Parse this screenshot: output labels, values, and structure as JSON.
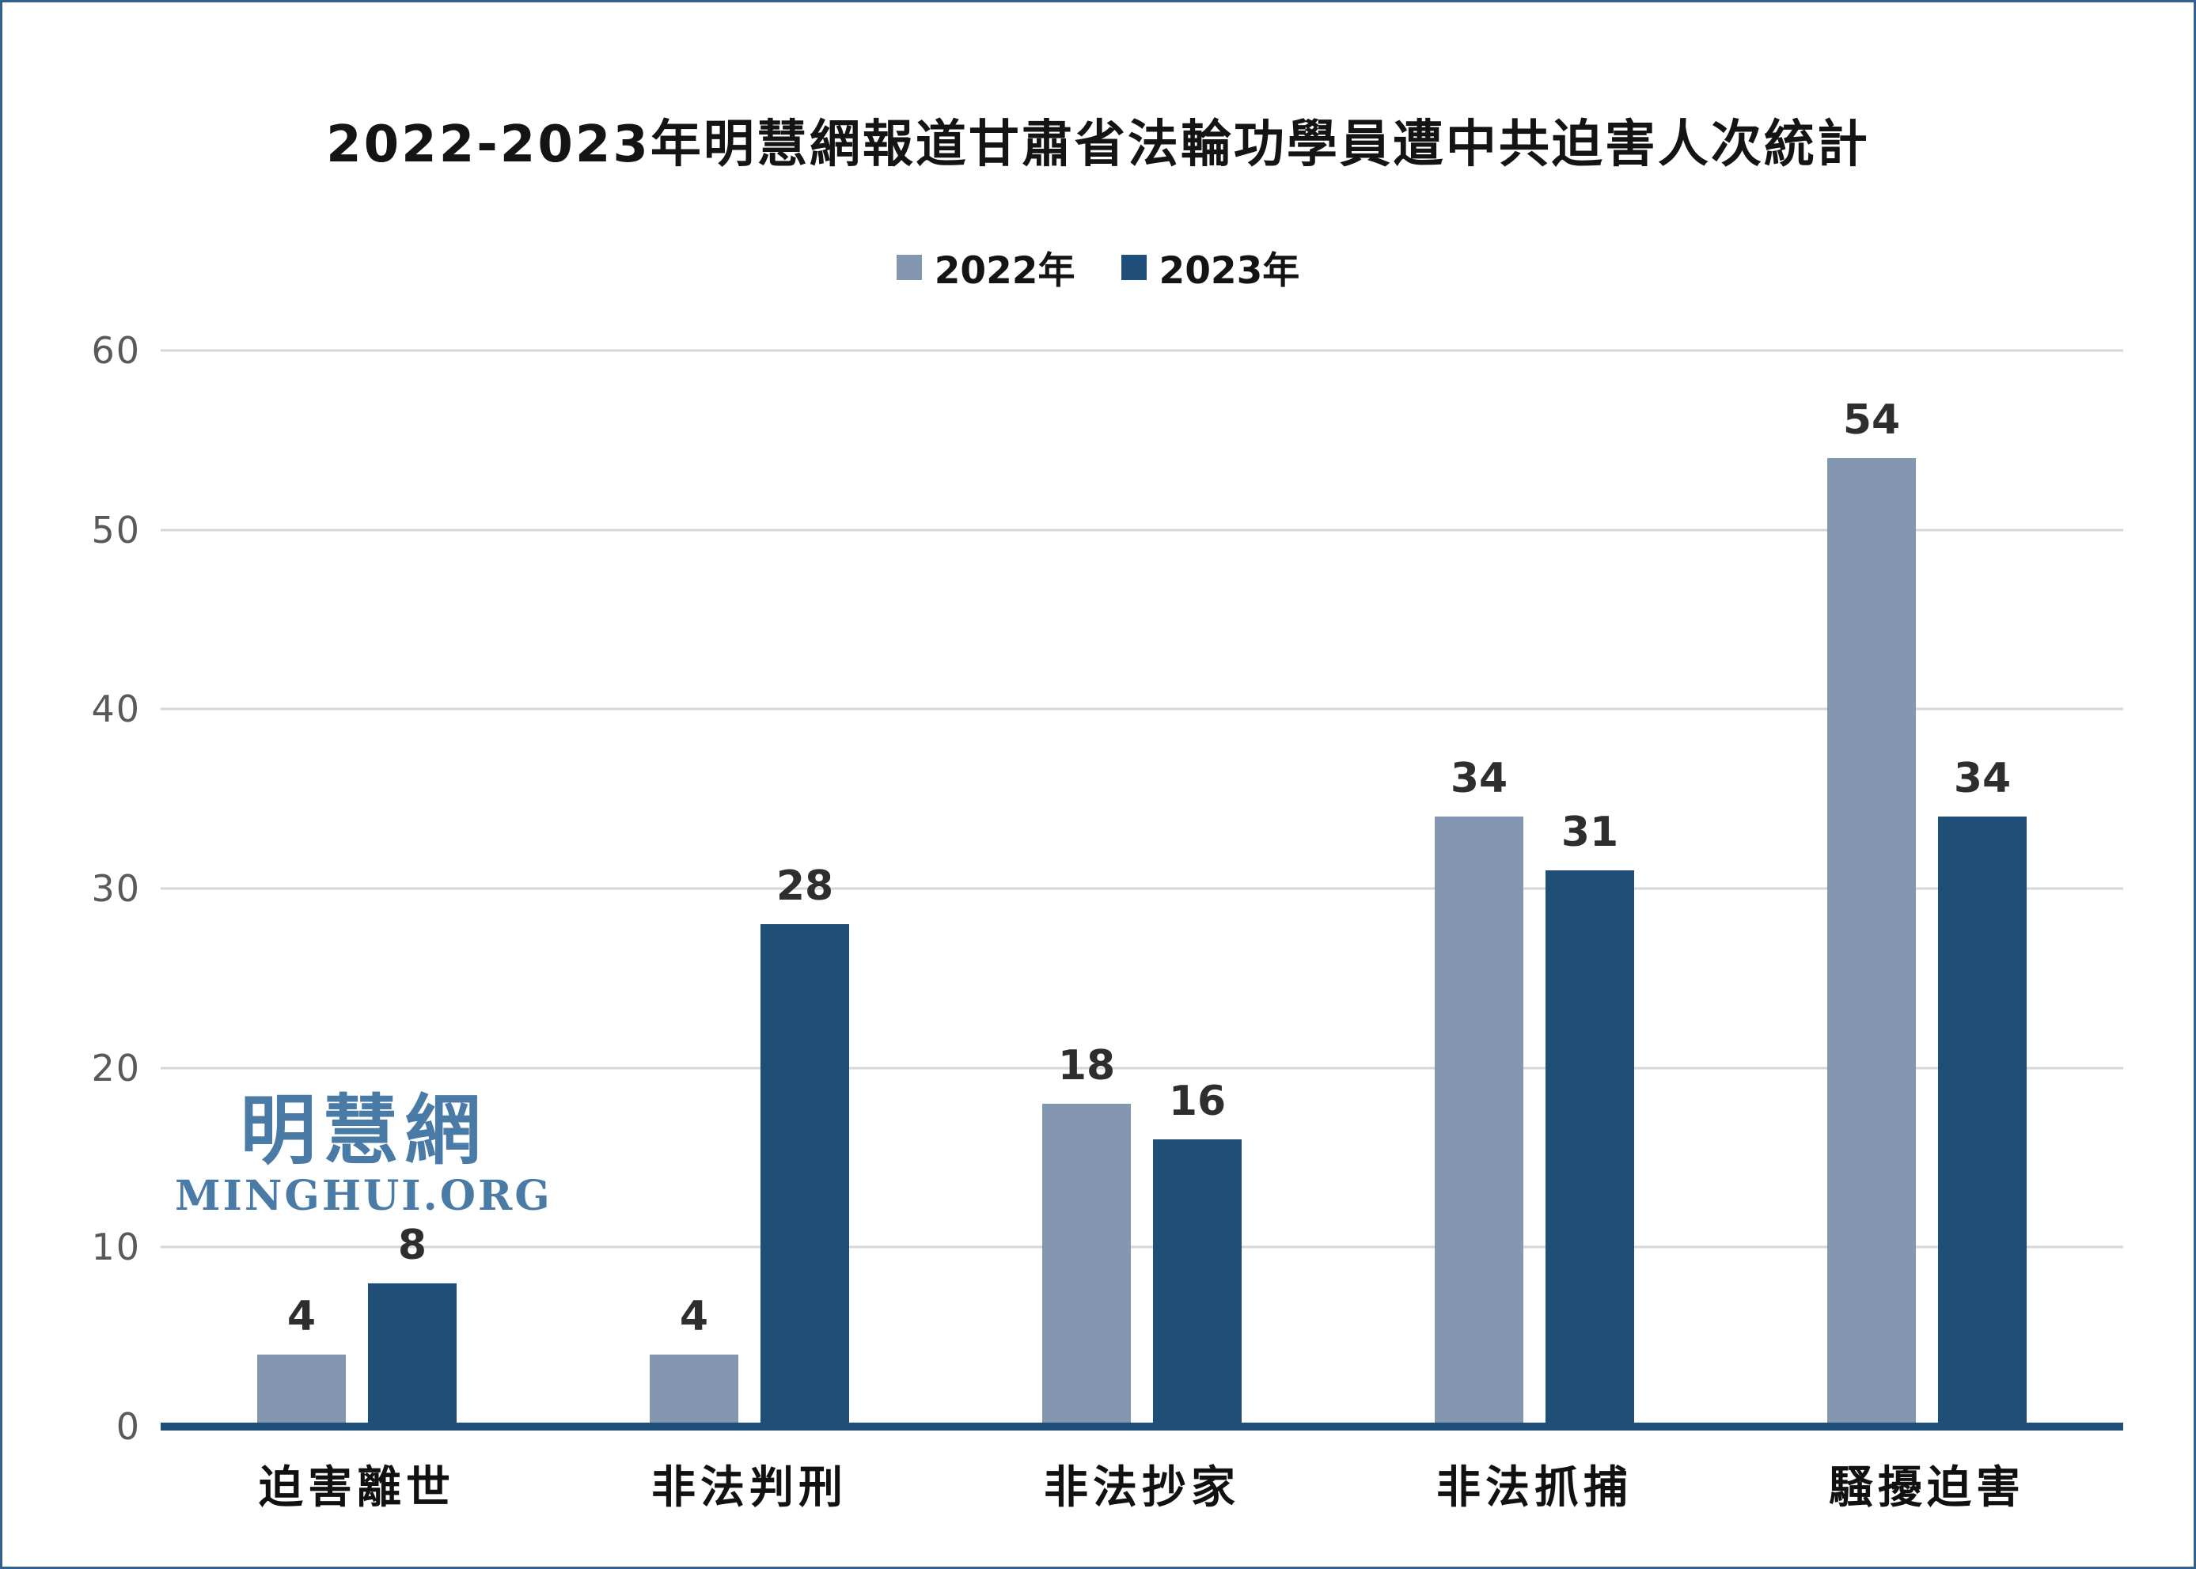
{
  "page": {
    "background": "#ffffff",
    "border_color": "#33618e"
  },
  "chart_data": {
    "type": "bar",
    "title": "2022-2023年明慧網報道甘肅省法輪功學員遭中共迫害人次統計",
    "categories": [
      "迫害離世",
      "非法判刑",
      "非法抄家",
      "非法抓捕",
      "騷擾迫害"
    ],
    "series": [
      {
        "name": "2022年",
        "color": "#8397B2",
        "values": [
          4,
          4,
          18,
          34,
          54
        ]
      },
      {
        "name": "2023年",
        "color": "#1F4E79",
        "values": [
          8,
          28,
          16,
          31,
          34
        ]
      }
    ],
    "value_labels": true,
    "ylim": [
      0,
      60
    ],
    "yticks": [
      0,
      10,
      20,
      30,
      40,
      50,
      60
    ],
    "grid": true,
    "grid_color": "#d6d6d6",
    "axis_line_color": "#1F4E79",
    "legend_position": "top-center",
    "xlabel": "",
    "ylabel": ""
  },
  "watermark": {
    "cn": "明慧網",
    "en": "MINGHUI.ORG",
    "color": "#4A7BA6"
  }
}
